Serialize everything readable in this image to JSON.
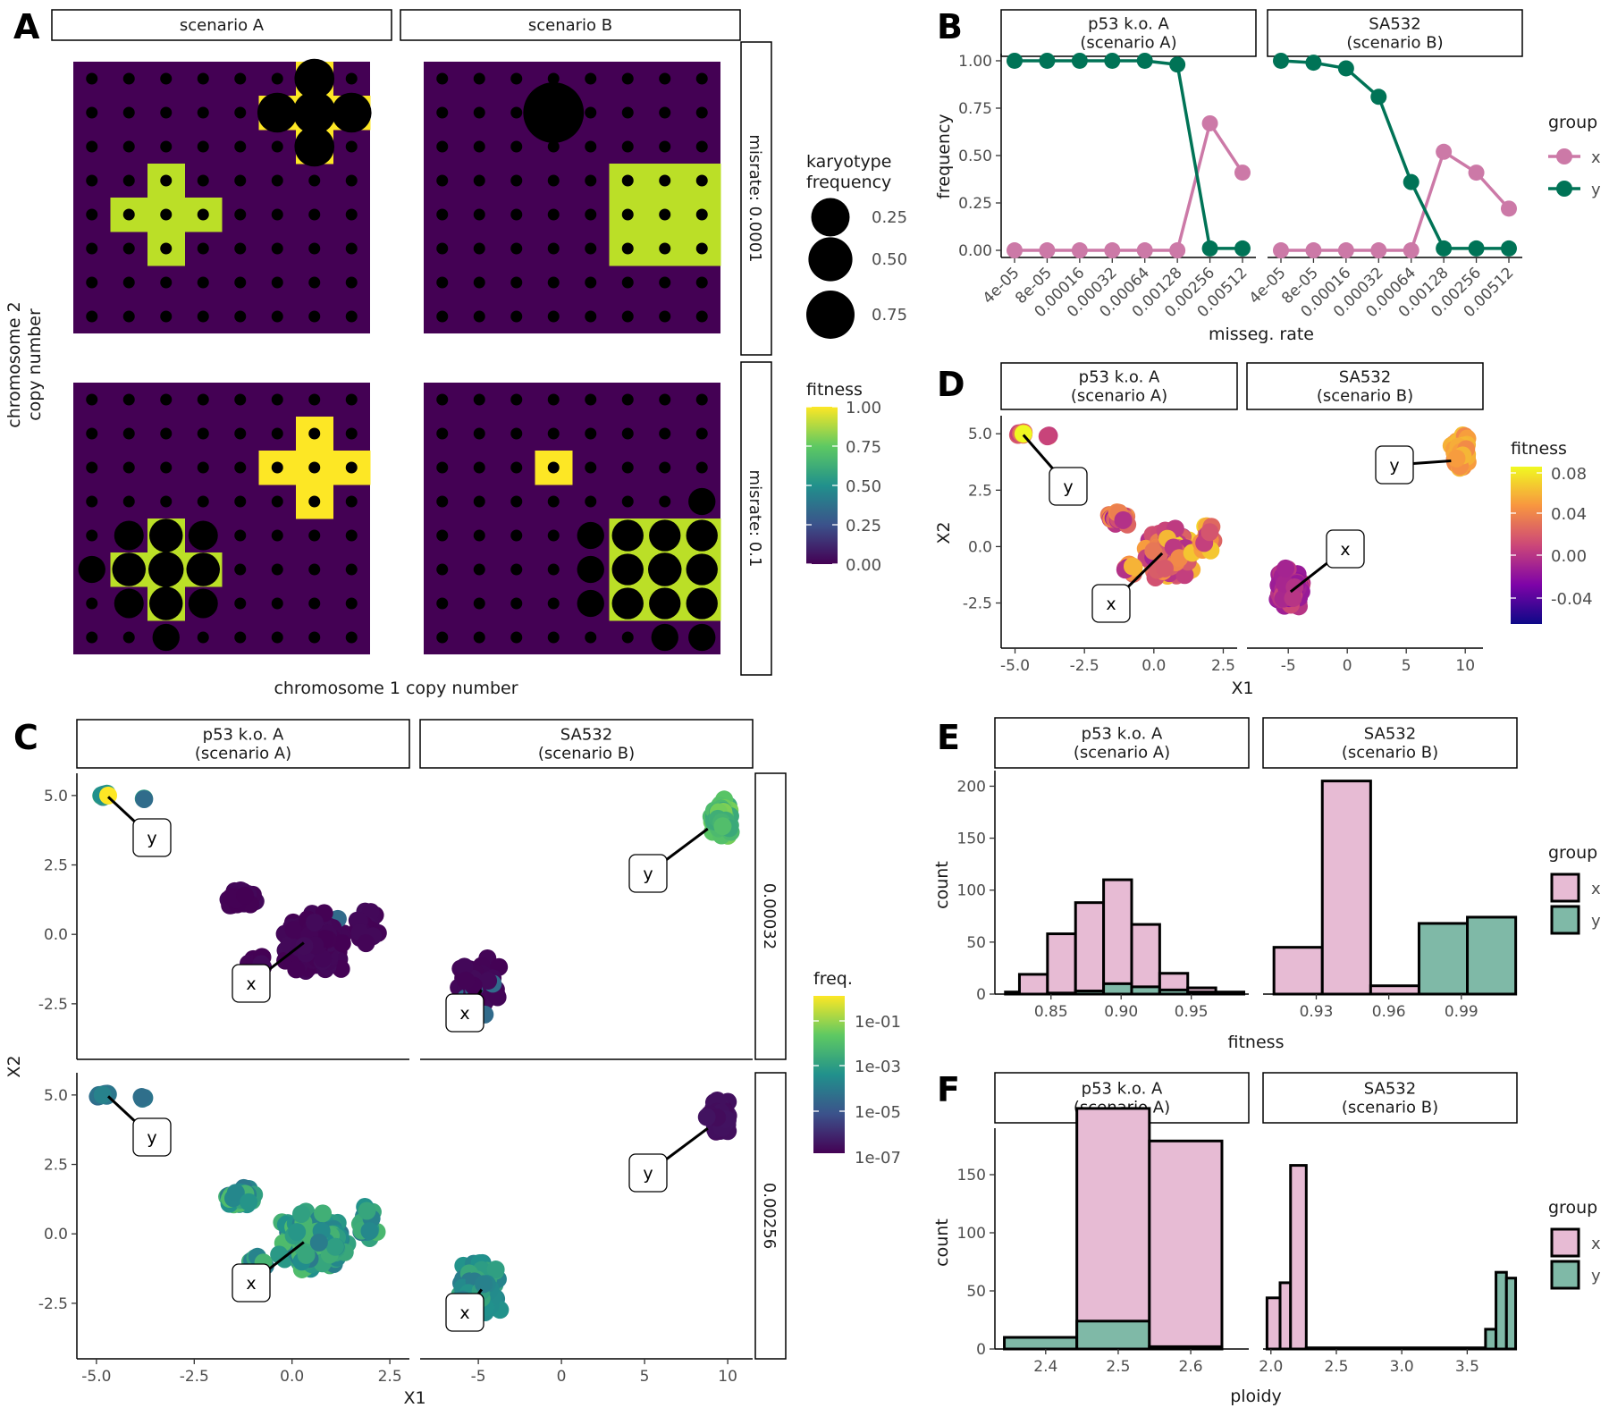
{
  "panel_labels": {
    "a": "A",
    "b": "B",
    "c": "C",
    "d": "D",
    "e": "E",
    "f": "F"
  },
  "colors": {
    "grid_bg": "#440154",
    "fitness_high": "#FDE725",
    "fitness_mid": "#BBDF27",
    "group_x": "#CC79A7",
    "group_y": "#007356",
    "hist_x_fill": "#E7BBD4",
    "hist_y_fill": "#7FB9A7"
  },
  "chart_data": [
    {
      "id": "A",
      "type": "scatter",
      "xlabel": "chromosome 1 copy number",
      "ylabel": "chromosome 2 copy number",
      "col_facets": [
        "scenario A",
        "scenario B"
      ],
      "row_facets": [
        "misrate: 0.0001",
        "misrate: 0.1"
      ],
      "grid_size": 8,
      "size_legend": {
        "title": "karyotype frequency",
        "labels": [
          "0.25",
          "0.50",
          "0.75"
        ],
        "values": [
          0.25,
          0.5,
          0.75
        ]
      },
      "fill_legend": {
        "title": "fitness",
        "labels": [
          "1.00",
          "0.75",
          "0.50",
          "0.25",
          "0.00"
        ]
      },
      "tiles": [
        {
          "row": 0,
          "col": 0,
          "cells": [
            [
              6,
              7
            ],
            [
              5,
              6
            ],
            [
              6,
              6
            ],
            [
              7,
              6
            ],
            [
              6,
              5
            ],
            [
              2,
              4
            ],
            [
              1,
              3
            ],
            [
              2,
              3
            ],
            [
              3,
              3
            ],
            [
              2,
              2
            ]
          ],
          "fitness": [
            1,
            1,
            1,
            1,
            1,
            0.85,
            0.85,
            0.85,
            0.85,
            0.85
          ]
        },
        {
          "row": 0,
          "col": 1,
          "cells": [
            [
              5,
              4
            ],
            [
              6,
              4
            ],
            [
              7,
              4
            ],
            [
              5,
              3
            ],
            [
              6,
              3
            ],
            [
              7,
              3
            ],
            [
              5,
              2
            ],
            [
              6,
              2
            ],
            [
              7,
              2
            ]
          ],
          "fitness": [
            0.85,
            0.85,
            0.85,
            0.85,
            0.85,
            0.85,
            0.85,
            0.85,
            0.85
          ]
        },
        {
          "row": 1,
          "col": 0,
          "cells": [
            [
              6,
              6
            ],
            [
              5,
              5
            ],
            [
              6,
              5
            ],
            [
              7,
              5
            ],
            [
              6,
              4
            ],
            [
              2,
              3
            ],
            [
              1,
              2
            ],
            [
              2,
              2
            ],
            [
              3,
              2
            ],
            [
              2,
              1
            ]
          ],
          "fitness": [
            1,
            1,
            1,
            1,
            1,
            0.85,
            0.85,
            0.85,
            0.85,
            0.85
          ]
        },
        {
          "row": 1,
          "col": 1,
          "cells": [
            [
              3,
              5
            ],
            [
              5,
              3
            ],
            [
              6,
              3
            ],
            [
              7,
              3
            ],
            [
              5,
              2
            ],
            [
              6,
              2
            ],
            [
              7,
              2
            ],
            [
              5,
              1
            ],
            [
              6,
              1
            ],
            [
              7,
              1
            ]
          ],
          "fitness": [
            1,
            0.85,
            0.85,
            0.85,
            0.85,
            0.85,
            0.85,
            0.85,
            0.85,
            0.85
          ]
        }
      ],
      "big_points": [
        {
          "row": 0,
          "col": 0,
          "x": 6,
          "y": 7,
          "freq": 0.1
        },
        {
          "row": 0,
          "col": 0,
          "x": 5,
          "y": 6,
          "freq": 0.1
        },
        {
          "row": 0,
          "col": 0,
          "x": 6,
          "y": 6,
          "freq": 0.12
        },
        {
          "row": 0,
          "col": 0,
          "x": 7,
          "y": 6,
          "freq": 0.1
        },
        {
          "row": 0,
          "col": 0,
          "x": 6,
          "y": 5,
          "freq": 0.1
        },
        {
          "row": 0,
          "col": 1,
          "x": 3,
          "y": 6,
          "freq": 0.3
        },
        {
          "row": 1,
          "col": 0,
          "x": 2,
          "y": 3,
          "freq": 0.06
        },
        {
          "row": 1,
          "col": 0,
          "x": 1,
          "y": 2,
          "freq": 0.06
        },
        {
          "row": 1,
          "col": 0,
          "x": 2,
          "y": 2,
          "freq": 0.07
        },
        {
          "row": 1,
          "col": 0,
          "x": 3,
          "y": 2,
          "freq": 0.06
        },
        {
          "row": 1,
          "col": 0,
          "x": 2,
          "y": 1,
          "freq": 0.06
        },
        {
          "row": 1,
          "col": 0,
          "x": 1,
          "y": 3,
          "freq": 0.04
        },
        {
          "row": 1,
          "col": 0,
          "x": 3,
          "y": 3,
          "freq": 0.04
        },
        {
          "row": 1,
          "col": 0,
          "x": 1,
          "y": 1,
          "freq": 0.04
        },
        {
          "row": 1,
          "col": 0,
          "x": 3,
          "y": 1,
          "freq": 0.04
        },
        {
          "row": 1,
          "col": 0,
          "x": 0,
          "y": 2,
          "freq": 0.03
        },
        {
          "row": 1,
          "col": 0,
          "x": 2,
          "y": 0,
          "freq": 0.03
        },
        {
          "row": 1,
          "col": 1,
          "x": 5,
          "y": 3,
          "freq": 0.05
        },
        {
          "row": 1,
          "col": 1,
          "x": 6,
          "y": 3,
          "freq": 0.05
        },
        {
          "row": 1,
          "col": 1,
          "x": 7,
          "y": 3,
          "freq": 0.05
        },
        {
          "row": 1,
          "col": 1,
          "x": 5,
          "y": 2,
          "freq": 0.05
        },
        {
          "row": 1,
          "col": 1,
          "x": 6,
          "y": 2,
          "freq": 0.06
        },
        {
          "row": 1,
          "col": 1,
          "x": 7,
          "y": 2,
          "freq": 0.05
        },
        {
          "row": 1,
          "col": 1,
          "x": 5,
          "y": 1,
          "freq": 0.05
        },
        {
          "row": 1,
          "col": 1,
          "x": 6,
          "y": 1,
          "freq": 0.05
        },
        {
          "row": 1,
          "col": 1,
          "x": 7,
          "y": 1,
          "freq": 0.05
        },
        {
          "row": 1,
          "col": 1,
          "x": 4,
          "y": 3,
          "freq": 0.03
        },
        {
          "row": 1,
          "col": 1,
          "x": 4,
          "y": 2,
          "freq": 0.03
        },
        {
          "row": 1,
          "col": 1,
          "x": 4,
          "y": 1,
          "freq": 0.03
        },
        {
          "row": 1,
          "col": 1,
          "x": 7,
          "y": 4,
          "freq": 0.03
        },
        {
          "row": 1,
          "col": 1,
          "x": 6,
          "y": 0,
          "freq": 0.03
        },
        {
          "row": 1,
          "col": 1,
          "x": 7,
          "y": 0,
          "freq": 0.03
        }
      ]
    },
    {
      "id": "B",
      "type": "line",
      "xlabel": "misseg. rate",
      "ylabel": "frequency",
      "facets": [
        "p53 k.o. A\n(scenario A)",
        "SA532\n(scenario B)"
      ],
      "categories": [
        "4e-05",
        "8e-05",
        "0.00016",
        "0.00032",
        "0.00064",
        "0.00128",
        "0.00256",
        "0.00512"
      ],
      "yticks": [
        "0.00",
        "0.25",
        "0.50",
        "0.75",
        "1.00"
      ],
      "ylim": [
        0,
        1
      ],
      "legend_title": "group",
      "series": [
        {
          "facet": 0,
          "name": "x",
          "values": [
            0,
            0,
            0,
            0,
            0,
            0,
            0.67,
            0.41
          ]
        },
        {
          "facet": 0,
          "name": "y",
          "values": [
            1.0,
            1.0,
            1.0,
            1.0,
            1.0,
            0.98,
            0.01,
            0.01
          ]
        },
        {
          "facet": 1,
          "name": "x",
          "values": [
            0,
            0,
            0,
            0,
            0,
            0.52,
            0.41,
            0.22
          ]
        },
        {
          "facet": 1,
          "name": "y",
          "values": [
            1.0,
            0.99,
            0.96,
            0.81,
            0.36,
            0.01,
            0.01,
            0.01
          ]
        }
      ],
      "legend_entries": [
        "x",
        "y"
      ]
    },
    {
      "id": "C",
      "type": "scatter",
      "xlabel": "X1",
      "ylabel": "X2",
      "facets": [
        "p53 k.o. A\n(scenario A)",
        "SA532\n(scenario B)"
      ],
      "row_facets": [
        "0.00032",
        "0.00256"
      ],
      "xticks_left": [
        "-5.0",
        "-2.5",
        "0.0",
        "2.5"
      ],
      "xticks_left_values": [
        -5,
        -2.5,
        0,
        2.5
      ],
      "xticks_right": [
        "-5",
        "0",
        "5",
        "10"
      ],
      "xticks_right_values": [
        -5,
        0,
        5,
        10
      ],
      "yticks": [
        "-2.5",
        "0.0",
        "2.5",
        "5.0"
      ],
      "yticks_values": [
        -2.5,
        0,
        2.5,
        5
      ],
      "xlim_left": [
        -5.5,
        3.0
      ],
      "xlim_right": [
        -8.5,
        11.5
      ],
      "ylim": [
        -4.5,
        5.8
      ],
      "legend_title": "freq.",
      "legend_labels": [
        "1e-01",
        "1e-03",
        "1e-05",
        "1e-07"
      ],
      "callout_labels": [
        "x",
        "y"
      ]
    },
    {
      "id": "D",
      "type": "scatter",
      "xlabel": "X1",
      "ylabel": "X2",
      "facets": [
        "p53 k.o. A\n(scenario A)",
        "SA532\n(scenario B)"
      ],
      "xticks_left": [
        "-5.0",
        "-2.5",
        "0.0",
        "2.5"
      ],
      "xticks_left_values": [
        -5,
        -2.5,
        0,
        2.5
      ],
      "xticks_right": [
        "-5",
        "0",
        "5",
        "10"
      ],
      "xticks_right_values": [
        -5,
        0,
        5,
        10
      ],
      "yticks": [
        "-2.5",
        "0.0",
        "2.5",
        "5.0"
      ],
      "yticks_values": [
        -2.5,
        0,
        2.5,
        5
      ],
      "xlim_left": [
        -5.5,
        3.0
      ],
      "xlim_right": [
        -8.5,
        11.5
      ],
      "ylim": [
        -4.5,
        5.8
      ],
      "legend_title": "fitness",
      "legend_labels": [
        "0.08",
        "0.04",
        "0.00",
        "-0.04"
      ],
      "callout_labels": [
        "x",
        "y"
      ]
    },
    {
      "id": "E",
      "type": "bar",
      "xlabel": "fitness",
      "ylabel": "count",
      "facets": [
        "p53 k.o. A\n(scenario A)",
        "SA532\n(scenario B)"
      ],
      "legend_title": "group",
      "legend_entries": [
        "x",
        "y"
      ],
      "yticks": [
        "0",
        "50",
        "100",
        "150",
        "200"
      ],
      "yticks_values": [
        0,
        50,
        100,
        150,
        200
      ],
      "ylim": [
        0,
        215
      ],
      "xticks_left": [
        "0.85",
        "0.90",
        "0.95"
      ],
      "xticks_left_values": [
        0.85,
        0.9,
        0.95
      ],
      "xlim_left": [
        0.81,
        0.991
      ],
      "xticks_right": [
        "0.93",
        "0.96",
        "0.99"
      ],
      "xticks_right_values": [
        0.93,
        0.96,
        0.99
      ],
      "xlim_right": [
        0.908,
        1.013
      ],
      "bars_left": [
        {
          "x0": 0.8175,
          "x1": 0.8275,
          "x": 2,
          "y": 0
        },
        {
          "x0": 0.8275,
          "x1": 0.8475,
          "x": 19,
          "y": 0
        },
        {
          "x0": 0.8475,
          "x1": 0.8675,
          "x": 57,
          "y": 1
        },
        {
          "x0": 0.8675,
          "x1": 0.8875,
          "x": 85,
          "y": 3
        },
        {
          "x0": 0.8875,
          "x1": 0.9075,
          "x": 100,
          "y": 10
        },
        {
          "x0": 0.9075,
          "x1": 0.9275,
          "x": 60,
          "y": 7
        },
        {
          "x0": 0.9275,
          "x1": 0.9475,
          "x": 16,
          "y": 4
        },
        {
          "x0": 0.9475,
          "x1": 0.9675,
          "x": 4,
          "y": 2
        },
        {
          "x0": 0.9675,
          "x1": 0.9875,
          "x": 1,
          "y": 1
        }
      ],
      "bars_right": [
        {
          "x0": 0.9125,
          "x1": 0.9325,
          "x": 45,
          "y": 0
        },
        {
          "x0": 0.9325,
          "x1": 0.9525,
          "x": 205,
          "y": 0
        },
        {
          "x0": 0.9525,
          "x1": 0.9725,
          "x": 8,
          "y": 0
        },
        {
          "x0": 0.9725,
          "x1": 0.9925,
          "x": 0,
          "y": 68
        },
        {
          "x0": 0.9925,
          "x1": 1.0125,
          "x": 0,
          "y": 74
        }
      ]
    },
    {
      "id": "F",
      "type": "bar",
      "xlabel": "ploidy",
      "ylabel": "count",
      "facets": [
        "p53 k.o. A\n(scenario A)",
        "SA532\n(scenario B)"
      ],
      "legend_title": "group",
      "legend_entries": [
        "x",
        "y"
      ],
      "yticks": [
        "0",
        "50",
        "100",
        "150"
      ],
      "yticks_values": [
        0,
        50,
        100,
        150
      ],
      "ylim": [
        0,
        190
      ],
      "xticks_left": [
        "2.4",
        "2.5",
        "2.6"
      ],
      "xticks_left_values": [
        2.4,
        2.5,
        2.6
      ],
      "xlim_left": [
        2.33,
        2.68
      ],
      "xticks_right": [
        "2.0",
        "2.5",
        "3.0",
        "3.5"
      ],
      "xticks_right_values": [
        2.0,
        2.5,
        3.0,
        3.5
      ],
      "xlim_right": [
        1.94,
        3.88
      ],
      "bars_left": [
        {
          "x0": 2.343,
          "x1": 2.443,
          "x": 0,
          "y": 10
        },
        {
          "x0": 2.443,
          "x1": 2.543,
          "x": 183,
          "y": 24
        },
        {
          "x0": 2.543,
          "x1": 2.643,
          "x": 177,
          "y": 2
        }
      ],
      "bars_right": [
        {
          "x0": 1.97,
          "x1": 2.07,
          "x": 44,
          "y": 0
        },
        {
          "x0": 2.07,
          "x1": 2.15,
          "x": 57,
          "y": 0
        },
        {
          "x0": 2.15,
          "x1": 2.27,
          "x": 158,
          "y": 0
        },
        {
          "x0": 2.27,
          "x1": 3.64,
          "x": 1,
          "y": 0
        },
        {
          "x0": 3.64,
          "x1": 3.72,
          "x": 0,
          "y": 17
        },
        {
          "x0": 3.72,
          "x1": 3.8,
          "x": 0,
          "y": 66
        },
        {
          "x0": 3.8,
          "x1": 3.87,
          "x": 0,
          "y": 61
        }
      ]
    }
  ]
}
